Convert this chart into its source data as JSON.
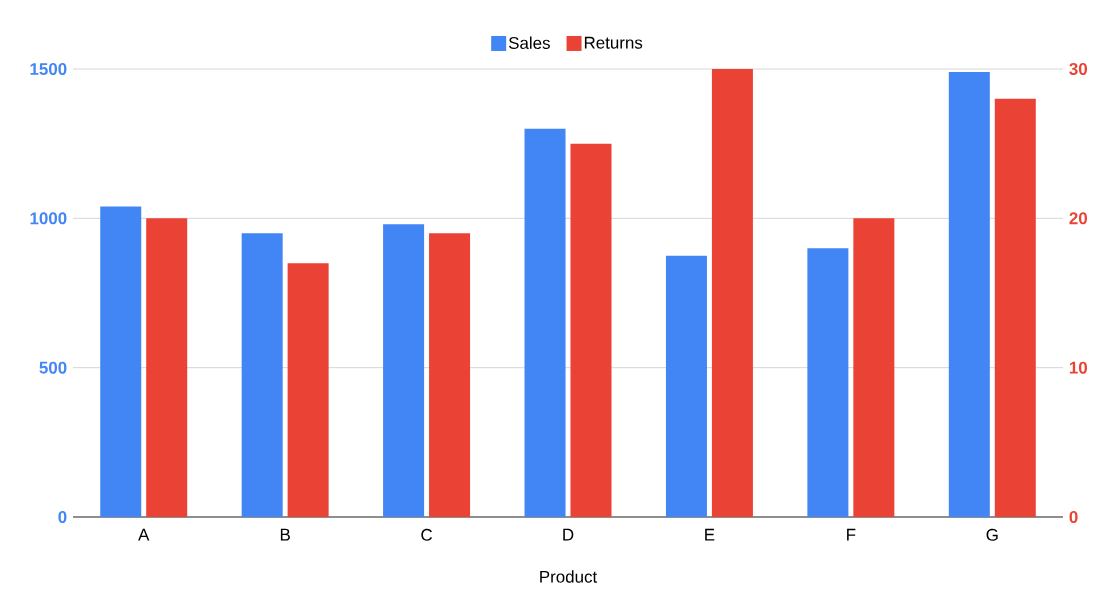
{
  "chart_data": {
    "type": "bar",
    "xlabel": "Product",
    "categories": [
      "A",
      "B",
      "C",
      "D",
      "E",
      "F",
      "G"
    ],
    "series": [
      {
        "name": "Sales",
        "color": "#4285f4",
        "values": [
          1040,
          950,
          980,
          1300,
          875,
          900,
          1490
        ]
      },
      {
        "name": "Returns",
        "color": "#ea4335",
        "axis": "y2",
        "values": [
          20,
          17,
          19,
          25,
          30,
          20,
          28
        ]
      }
    ],
    "ylim": [
      0,
      1500
    ],
    "yticks": [
      0,
      500,
      1000,
      1500
    ],
    "y2lim": [
      0,
      30
    ],
    "y2ticks": [
      0,
      10,
      20,
      30
    ],
    "grid": "y",
    "legend": "top"
  }
}
